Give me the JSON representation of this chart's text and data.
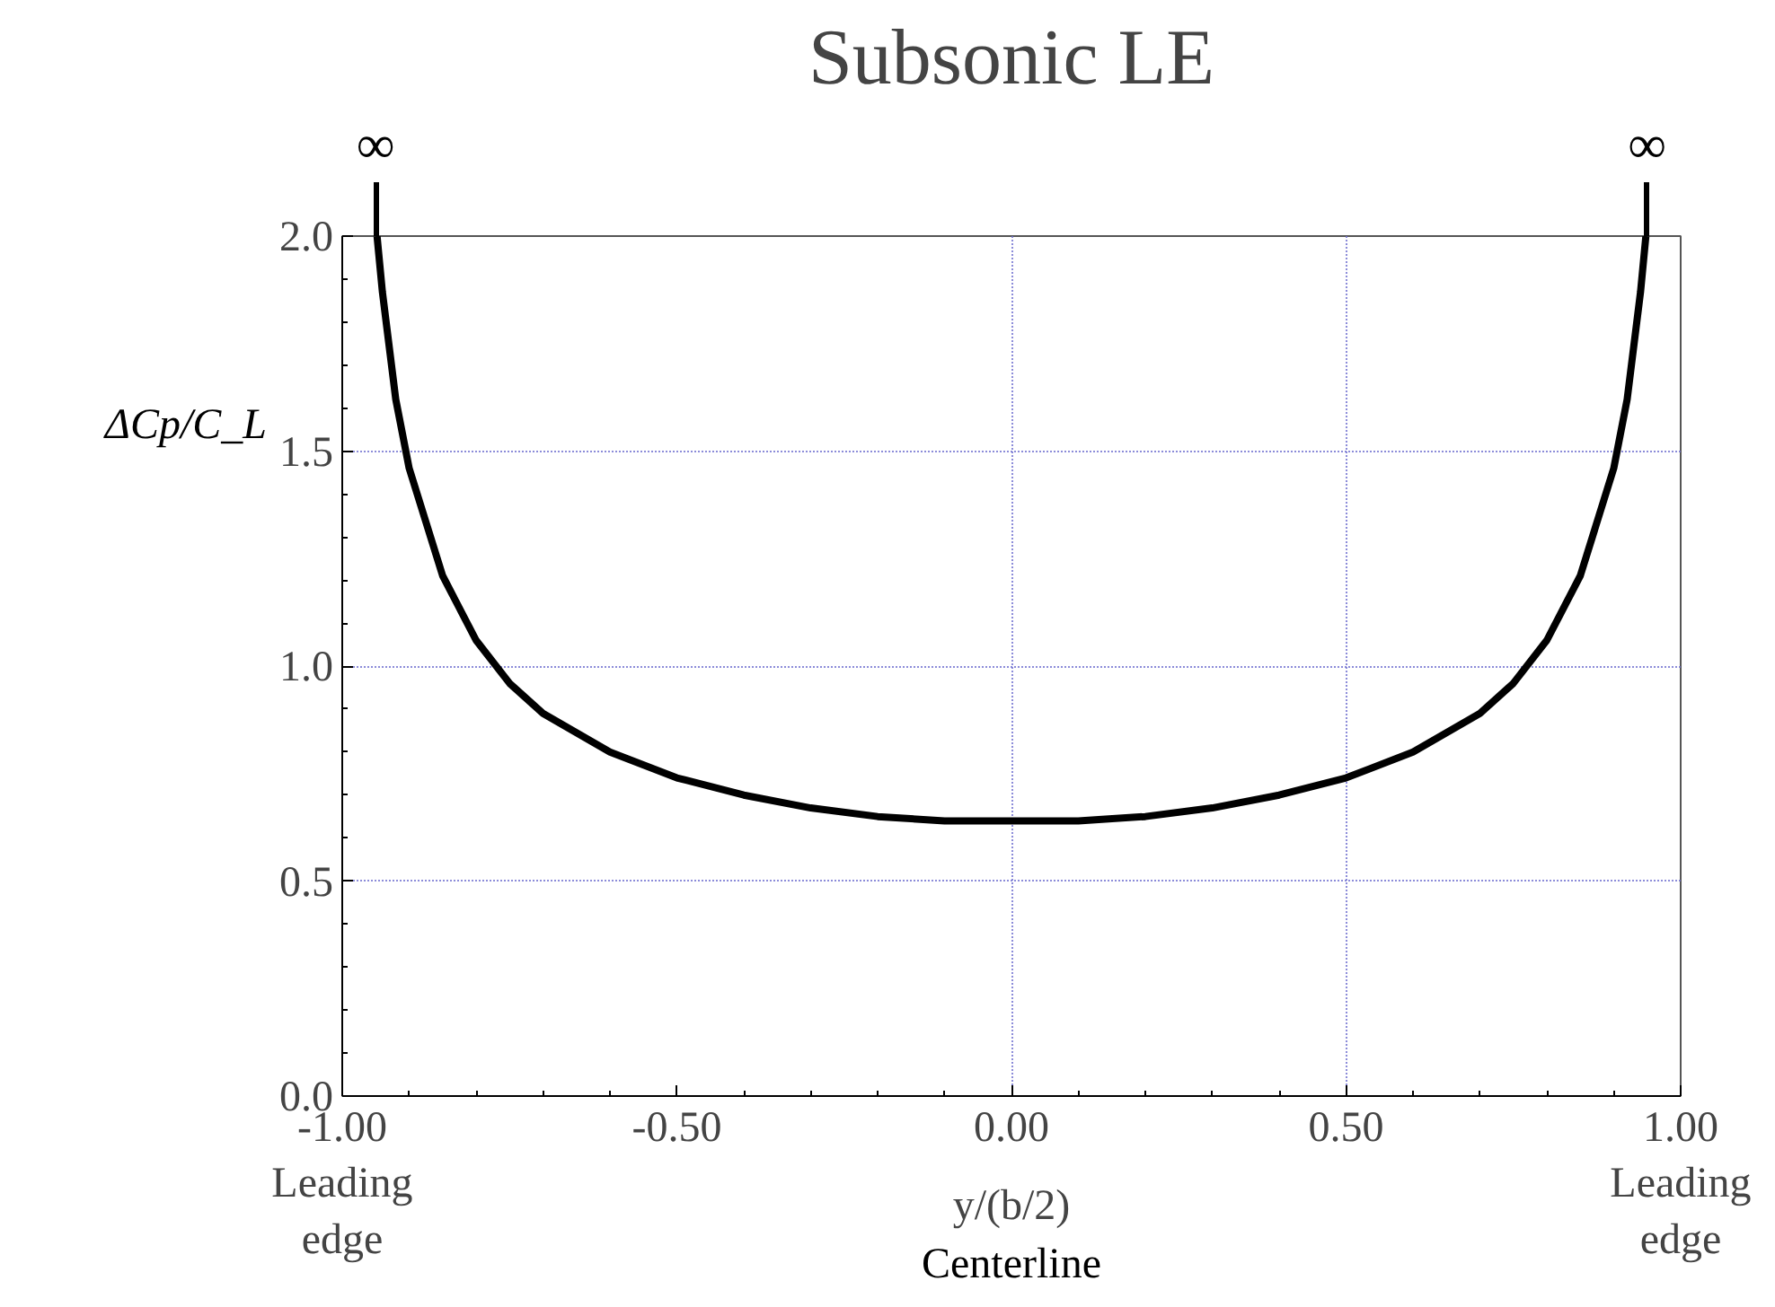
{
  "chart_data": {
    "type": "line",
    "title": "Subsonic LE",
    "xlabel": "y/(b/2)",
    "ylabel": "ΔCp/C_L",
    "x": [
      -0.948,
      -0.94,
      -0.92,
      -0.9,
      -0.85,
      -0.8,
      -0.75,
      -0.7,
      -0.6,
      -0.5,
      -0.4,
      -0.3,
      -0.2,
      -0.1,
      0,
      0.1,
      0.2,
      0.3,
      0.4,
      0.5,
      0.6,
      0.7,
      0.75,
      0.8,
      0.85,
      0.9,
      0.92,
      0.94,
      0.948
    ],
    "series": [
      {
        "color": "#000000",
        "values": [
          2.0,
          1.87,
          1.62,
          1.46,
          1.21,
          1.06,
          0.96,
          0.89,
          0.8,
          0.74,
          0.7,
          0.67,
          0.65,
          0.64,
          0.64,
          0.64,
          0.65,
          0.67,
          0.7,
          0.74,
          0.8,
          0.89,
          0.96,
          1.06,
          1.21,
          1.46,
          1.62,
          1.87,
          2.0
        ]
      }
    ],
    "xlim": [
      -1,
      1
    ],
    "ylim": [
      0,
      2
    ],
    "xticks": [
      {
        "value": -1,
        "label": "-1.00\nLeading\nedge"
      },
      {
        "value": -0.5,
        "label": "-0.50"
      },
      {
        "value": 0,
        "label": "0.00"
      },
      {
        "value": 0.5,
        "label": "0.50"
      },
      {
        "value": 1,
        "label": "1.00\nLeading\nedge"
      }
    ],
    "yticks": [
      {
        "value": 0,
        "label": "0.0"
      },
      {
        "value": 0.5,
        "label": "0.5"
      },
      {
        "value": 1,
        "label": "1.0"
      },
      {
        "value": 1.5,
        "label": "1.5"
      },
      {
        "value": 2,
        "label": "2.0"
      }
    ],
    "annotations": [
      {
        "text": "∞",
        "x": -0.95
      },
      {
        "text": "∞",
        "x": 0.95
      },
      "Centerline"
    ],
    "grid": true,
    "marker": "none",
    "line_style": "solid"
  }
}
